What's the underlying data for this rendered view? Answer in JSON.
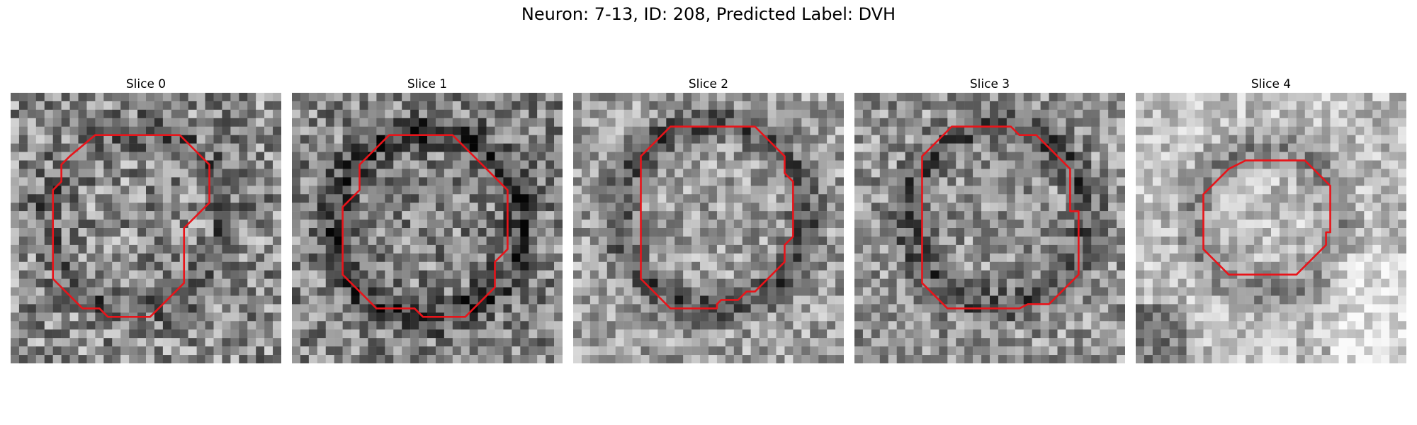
{
  "figure": {
    "title": "Neuron: 7-13, ID: 208, Predicted Label: DVH",
    "contour_color": "#e8141a",
    "colormap": "grayscale",
    "slices": [
      {
        "label": "Slice 0",
        "contour": [
          [
            10,
            5
          ],
          [
            20,
            5
          ],
          [
            23.5,
            8.5
          ],
          [
            23.5,
            13
          ],
          [
            20.5,
            16
          ],
          [
            20.5,
            22.5
          ],
          [
            16.5,
            26.5
          ],
          [
            11.5,
            26.5
          ],
          [
            10.5,
            25.5
          ],
          [
            8.5,
            25.5
          ],
          [
            5,
            22
          ],
          [
            5,
            11.5
          ],
          [
            6,
            10.5
          ],
          [
            6,
            8.5
          ],
          [
            7,
            7.5
          ],
          [
            7,
            7.5
          ],
          [
            10,
            5
          ]
        ]
      },
      {
        "label": "Slice 1",
        "contour": [
          [
            12,
            5
          ],
          [
            19,
            5
          ],
          [
            25.5,
            11.5
          ],
          [
            25.5,
            18.5
          ],
          [
            24,
            20
          ],
          [
            24,
            23
          ],
          [
            20.5,
            26.5
          ],
          [
            15.5,
            26.5
          ],
          [
            14.5,
            25.5
          ],
          [
            10,
            25.5
          ],
          [
            6,
            21.5
          ],
          [
            6,
            13.5
          ],
          [
            8,
            11.5
          ],
          [
            8,
            8.5
          ],
          [
            8,
            8.5
          ],
          [
            11.5,
            5
          ],
          [
            12,
            5
          ]
        ]
      },
      {
        "label": "Slice 2",
        "contour": [
          [
            11.5,
            4
          ],
          [
            21.5,
            4
          ],
          [
            25,
            7.5
          ],
          [
            25,
            9.5
          ],
          [
            26,
            10.5
          ],
          [
            26,
            17
          ],
          [
            25,
            18
          ],
          [
            25,
            20
          ],
          [
            21.5,
            23.5
          ],
          [
            20.5,
            23.5
          ],
          [
            19.5,
            24.5
          ],
          [
            17.5,
            24.5
          ],
          [
            17,
            25
          ],
          [
            17,
            25.5
          ],
          [
            11.5,
            25.5
          ],
          [
            8,
            22
          ],
          [
            8,
            7.5
          ],
          [
            11.5,
            4
          ]
        ]
      },
      {
        "label": "Slice 3",
        "contour": [
          [
            11.5,
            4
          ],
          [
            18.5,
            4
          ],
          [
            19.5,
            5
          ],
          [
            21.5,
            5
          ],
          [
            25.5,
            9
          ],
          [
            25.5,
            14
          ],
          [
            26.5,
            14
          ],
          [
            26.5,
            21.5
          ],
          [
            23,
            25
          ],
          [
            20.5,
            25
          ],
          [
            19.5,
            25.5
          ],
          [
            11,
            25.5
          ],
          [
            8,
            22.5
          ],
          [
            8,
            7.5
          ],
          [
            11.5,
            4
          ]
        ]
      },
      {
        "label": "Slice 4",
        "contour": [
          [
            13,
            8
          ],
          [
            20,
            8
          ],
          [
            23,
            11
          ],
          [
            23,
            16.5
          ],
          [
            22.5,
            16.5
          ],
          [
            22.5,
            18
          ],
          [
            19,
            21.5
          ],
          [
            11,
            21.5
          ],
          [
            8,
            18.5
          ],
          [
            8,
            12
          ],
          [
            11,
            9
          ],
          [
            13,
            8
          ]
        ]
      }
    ]
  }
}
